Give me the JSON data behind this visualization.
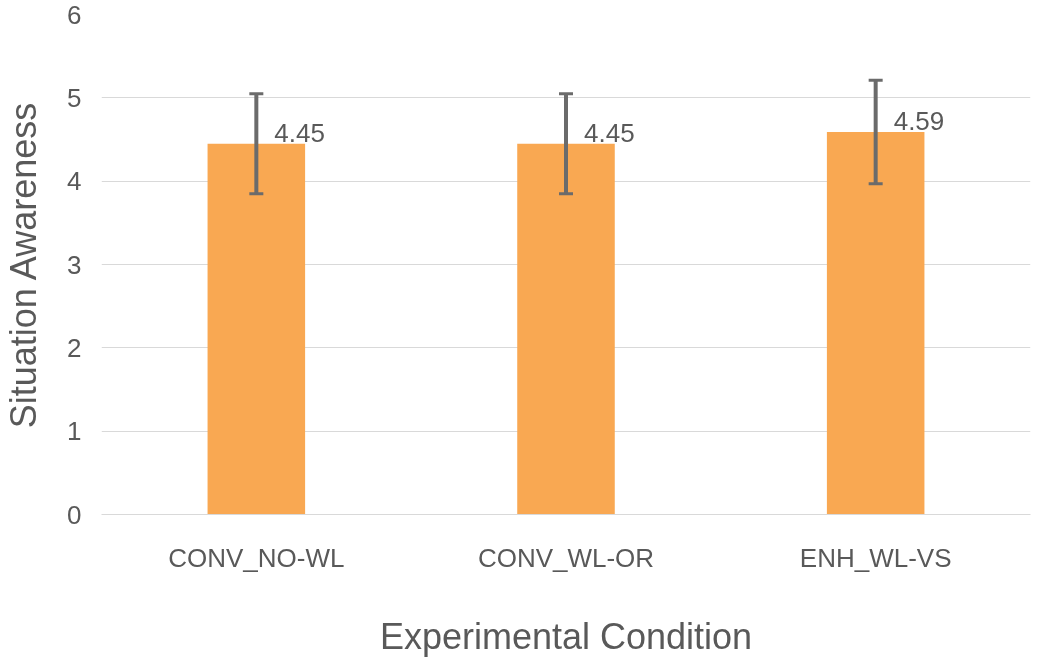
{
  "chart_data": {
    "type": "bar",
    "xlabel": "Experimental Condition",
    "ylabel": "Situation Awareness",
    "categories": [
      "CONV_NO-WL",
      "CONV_WL-OR",
      "ENH_WL-VS"
    ],
    "values": [
      4.45,
      4.45,
      4.59
    ],
    "color": "#f9a852",
    "errors": [
      0.6,
      0.6,
      0.62
    ],
    "ylim": [
      0,
      6
    ],
    "yticks": [
      0,
      1,
      2,
      3,
      4,
      5,
      6
    ],
    "grid": "y",
    "data_labels": true
  }
}
